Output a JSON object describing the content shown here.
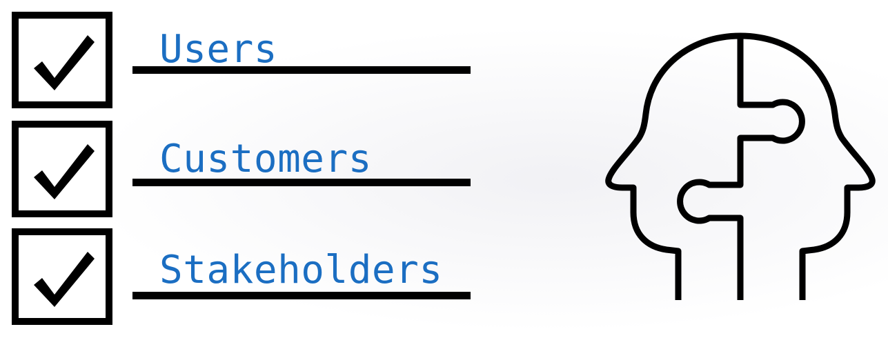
{
  "checklist": {
    "items": [
      {
        "label": "Users",
        "checked": true
      },
      {
        "label": "Customers",
        "checked": true
      },
      {
        "label": "Stakeholders",
        "checked": true
      }
    ]
  },
  "illustration": {
    "icon": "two-heads-puzzle-icon"
  },
  "colors": {
    "label_text": "#1b6ec2",
    "stroke": "#000000",
    "background": "#ffffff"
  }
}
